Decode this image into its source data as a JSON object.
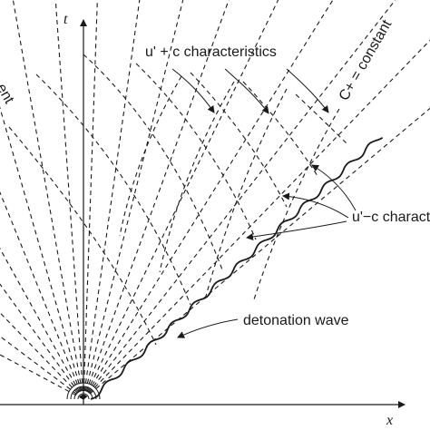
{
  "axes": {
    "t_label": "t",
    "x_label": "x"
  },
  "labels": {
    "plus_char": "u' + c characteristics",
    "c_plus": "C+ = constant",
    "minus_char": "u'−c characteristics",
    "detonation": "detonation wave",
    "left_cut": "ent"
  },
  "colors": {
    "ink": "#1a1a1a",
    "background": "#ffffff"
  },
  "icons": {
    "arrowheads": "arrowhead-icon",
    "wave_front": "wavy-line"
  }
}
